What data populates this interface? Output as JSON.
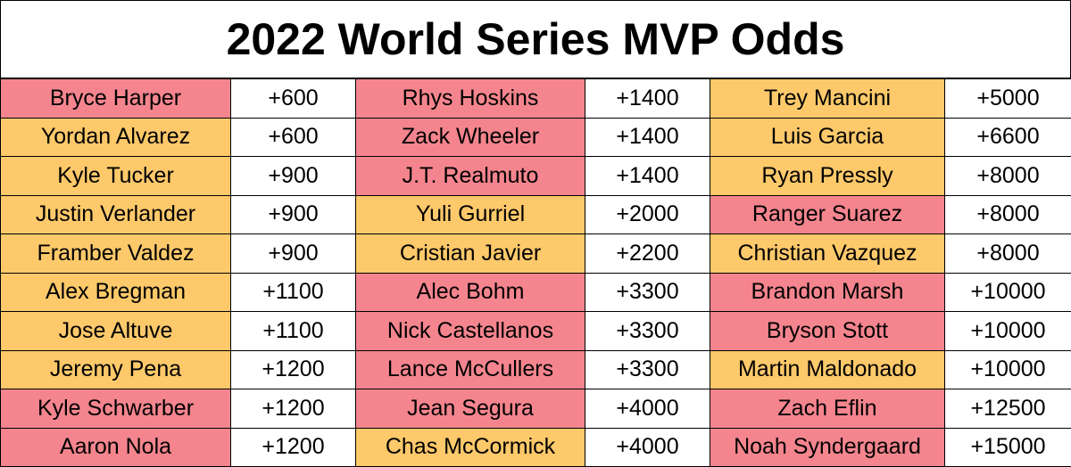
{
  "title": "2022 World Series MVP Odds",
  "table": {
    "rows": [
      [
        {
          "name": "Bryce Harper",
          "odds": "+600",
          "color": "#f4858e"
        },
        {
          "name": "Rhys Hoskins",
          "odds": "+1400",
          "color": "#f4858e"
        },
        {
          "name": "Trey Mancini",
          "odds": "+5000",
          "color": "#fec96a"
        }
      ],
      [
        {
          "name": "Yordan Alvarez",
          "odds": "+600",
          "color": "#fec96a"
        },
        {
          "name": "Zack Wheeler",
          "odds": "+1400",
          "color": "#f4858e"
        },
        {
          "name": "Luis Garcia",
          "odds": "+6600",
          "color": "#fec96a"
        }
      ],
      [
        {
          "name": "Kyle Tucker",
          "odds": "+900",
          "color": "#fec96a"
        },
        {
          "name": "J.T. Realmuto",
          "odds": "+1400",
          "color": "#f4858e"
        },
        {
          "name": "Ryan Pressly",
          "odds": "+8000",
          "color": "#fec96a"
        }
      ],
      [
        {
          "name": "Justin Verlander",
          "odds": "+900",
          "color": "#fec96a"
        },
        {
          "name": "Yuli Gurriel",
          "odds": "+2000",
          "color": "#fec96a"
        },
        {
          "name": "Ranger Suarez",
          "odds": "+8000",
          "color": "#f4858e"
        }
      ],
      [
        {
          "name": "Framber Valdez",
          "odds": "+900",
          "color": "#fec96a"
        },
        {
          "name": "Cristian Javier",
          "odds": "+2200",
          "color": "#fec96a"
        },
        {
          "name": "Christian Vazquez",
          "odds": "+8000",
          "color": "#fec96a"
        }
      ],
      [
        {
          "name": "Alex Bregman",
          "odds": "+1100",
          "color": "#fec96a"
        },
        {
          "name": "Alec Bohm",
          "odds": "+3300",
          "color": "#f4858e"
        },
        {
          "name": "Brandon Marsh",
          "odds": "+10000",
          "color": "#f4858e"
        }
      ],
      [
        {
          "name": "Jose Altuve",
          "odds": "+1100",
          "color": "#fec96a"
        },
        {
          "name": "Nick Castellanos",
          "odds": "+3300",
          "color": "#f4858e"
        },
        {
          "name": "Bryson Stott",
          "odds": "+10000",
          "color": "#f4858e"
        }
      ],
      [
        {
          "name": "Jeremy Pena",
          "odds": "+1200",
          "color": "#fec96a"
        },
        {
          "name": "Lance McCullers",
          "odds": "+3300",
          "color": "#f4858e"
        },
        {
          "name": "Martin Maldonado",
          "odds": "+10000",
          "color": "#fec96a"
        }
      ],
      [
        {
          "name": "Kyle Schwarber",
          "odds": "+1200",
          "color": "#f4858e"
        },
        {
          "name": "Jean Segura",
          "odds": "+4000",
          "color": "#f4858e"
        },
        {
          "name": "Zach Eflin",
          "odds": "+12500",
          "color": "#f4858e"
        }
      ],
      [
        {
          "name": "Aaron Nola",
          "odds": "+1200",
          "color": "#f4858e"
        },
        {
          "name": "Chas McCormick",
          "odds": "+4000",
          "color": "#fec96a"
        },
        {
          "name": "Noah Syndergaard",
          "odds": "+15000",
          "color": "#f4858e"
        }
      ]
    ]
  }
}
